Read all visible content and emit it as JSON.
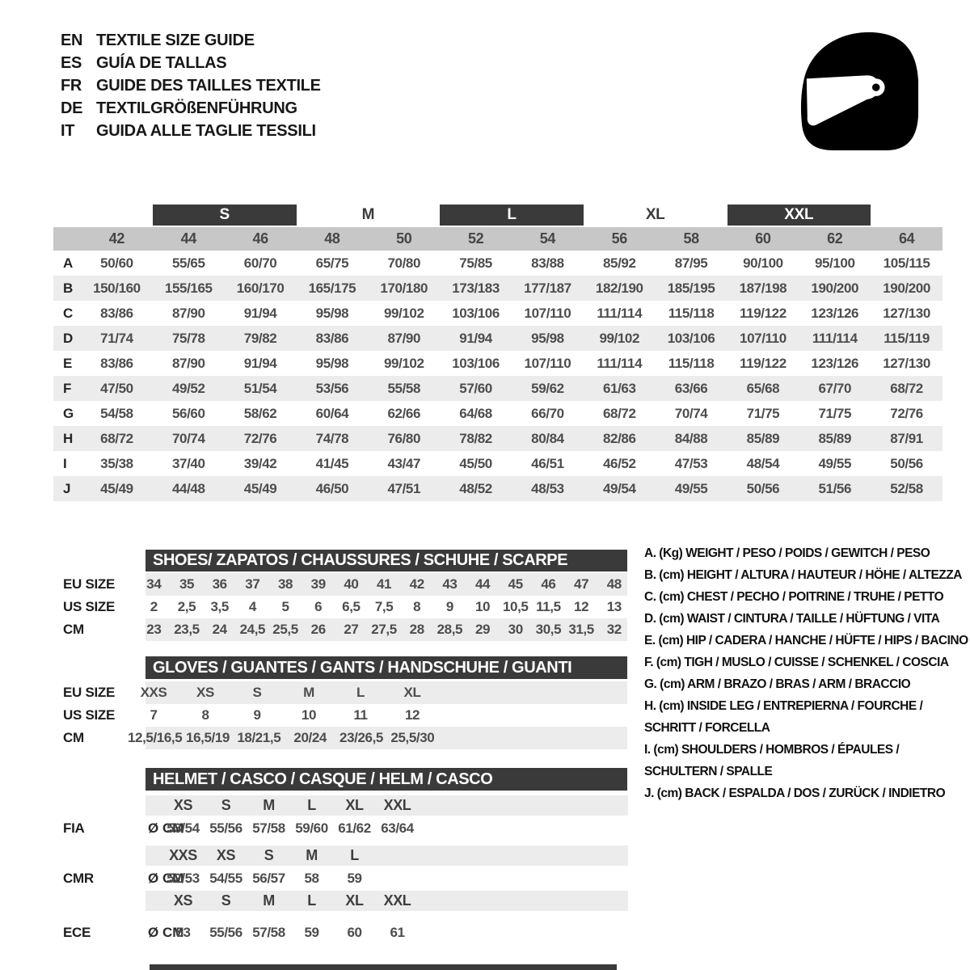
{
  "languages": [
    {
      "code": "EN",
      "label": "TEXTILE SIZE GUIDE"
    },
    {
      "code": "ES",
      "label": "GUÍA DE TALLAS"
    },
    {
      "code": "FR",
      "label": "GUIDE DES TAILLES TEXTILE"
    },
    {
      "code": "DE",
      "label": "TEXTILGRÖßENFÜHRUNG"
    },
    {
      "code": "IT",
      "label": "GUIDA ALLE TAGLIE TESSILI"
    }
  ],
  "main_table": {
    "size_groups": [
      {
        "label": "S",
        "filled": true
      },
      {
        "label": "M",
        "filled": false
      },
      {
        "label": "L",
        "filled": true
      },
      {
        "label": "XL",
        "filled": false
      },
      {
        "label": "XXL",
        "filled": true
      }
    ],
    "columns": [
      "42",
      "44",
      "46",
      "48",
      "50",
      "52",
      "54",
      "56",
      "58",
      "60",
      "62",
      "64"
    ],
    "rows": [
      {
        "label": "A",
        "values": [
          "50/60",
          "55/65",
          "60/70",
          "65/75",
          "70/80",
          "75/85",
          "83/88",
          "85/92",
          "87/95",
          "90/100",
          "95/100",
          "105/115"
        ]
      },
      {
        "label": "B",
        "values": [
          "150/160",
          "155/165",
          "160/170",
          "165/175",
          "170/180",
          "173/183",
          "177/187",
          "182/190",
          "185/195",
          "187/198",
          "190/200",
          "190/200"
        ]
      },
      {
        "label": "C",
        "values": [
          "83/86",
          "87/90",
          "91/94",
          "95/98",
          "99/102",
          "103/106",
          "107/110",
          "111/114",
          "115/118",
          "119/122",
          "123/126",
          "127/130"
        ]
      },
      {
        "label": "D",
        "values": [
          "71/74",
          "75/78",
          "79/82",
          "83/86",
          "87/90",
          "91/94",
          "95/98",
          "99/102",
          "103/106",
          "107/110",
          "111/114",
          "115/119"
        ]
      },
      {
        "label": "E",
        "values": [
          "83/86",
          "87/90",
          "91/94",
          "95/98",
          "99/102",
          "103/106",
          "107/110",
          "111/114",
          "115/118",
          "119/122",
          "123/126",
          "127/130"
        ]
      },
      {
        "label": "F",
        "values": [
          "47/50",
          "49/52",
          "51/54",
          "53/56",
          "55/58",
          "57/60",
          "59/62",
          "61/63",
          "63/66",
          "65/68",
          "67/70",
          "68/72"
        ]
      },
      {
        "label": "G",
        "values": [
          "54/58",
          "56/60",
          "58/62",
          "60/64",
          "62/66",
          "64/68",
          "66/70",
          "68/72",
          "70/74",
          "71/75",
          "71/75",
          "72/76"
        ]
      },
      {
        "label": "H",
        "values": [
          "68/72",
          "70/74",
          "72/76",
          "74/78",
          "76/80",
          "78/82",
          "80/84",
          "82/86",
          "84/88",
          "85/89",
          "85/89",
          "87/91"
        ]
      },
      {
        "label": "I",
        "values": [
          "35/38",
          "37/40",
          "39/42",
          "41/45",
          "43/47",
          "45/50",
          "46/51",
          "46/52",
          "47/53",
          "48/54",
          "49/55",
          "50/56"
        ]
      },
      {
        "label": "J",
        "values": [
          "45/49",
          "44/48",
          "45/49",
          "46/50",
          "47/51",
          "48/52",
          "48/53",
          "49/54",
          "49/55",
          "50/56",
          "51/56",
          "52/58"
        ]
      }
    ]
  },
  "shoes": {
    "title": "SHOES/ ZAPATOS / CHAUSSURES / SCHUHE / SCARPE",
    "rows": [
      {
        "label": "EU SIZE",
        "shaded": true,
        "values": [
          "34",
          "35",
          "36",
          "37",
          "38",
          "39",
          "40",
          "41",
          "42",
          "43",
          "44",
          "45",
          "46",
          "47",
          "48"
        ]
      },
      {
        "label": "US SIZE",
        "shaded": false,
        "values": [
          "2",
          "2,5",
          "3,5",
          "4",
          "5",
          "6",
          "6,5",
          "7,5",
          "8",
          "9",
          "10",
          "10,5",
          "11,5",
          "12",
          "13"
        ]
      },
      {
        "label": "CM",
        "shaded": true,
        "values": [
          "23",
          "23,5",
          "24",
          "24,5",
          "25,5",
          "26",
          "27",
          "27,5",
          "28",
          "28,5",
          "29",
          "30",
          "30,5",
          "31,5",
          "32"
        ]
      }
    ]
  },
  "gloves": {
    "title": "GLOVES / GUANTES / GANTS / HANDSCHUHE / GUANTI",
    "rows": [
      {
        "label": "EU SIZE",
        "shaded": true,
        "values": [
          "XXS",
          "XS",
          "S",
          "M",
          "L",
          "XL"
        ]
      },
      {
        "label": "US SIZE",
        "shaded": false,
        "values": [
          "7",
          "8",
          "9",
          "10",
          "11",
          "12"
        ]
      },
      {
        "label": "CM",
        "shaded": true,
        "values": [
          "12,5/16,5",
          "16,5/19",
          "18/21,5",
          "20/24",
          "23/26,5",
          "25,5/30"
        ]
      }
    ]
  },
  "helmet": {
    "title": "HELMET / CASCO / CASQUE / HELM / CASCO",
    "standards": [
      {
        "label": "FIA",
        "unit": "Ø CM",
        "sizes": [
          "XS",
          "S",
          "M",
          "L",
          "XL",
          "XXL"
        ],
        "values": [
          "53/54",
          "55/56",
          "57/58",
          "59/60",
          "61/62",
          "63/64"
        ]
      },
      {
        "label": "CMR",
        "unit": "Ø CM",
        "sizes": [
          "XXS",
          "XS",
          "S",
          "M",
          "L"
        ],
        "values": [
          "52/53",
          "54/55",
          "56/57",
          "58",
          "59"
        ]
      },
      {
        "label": "ECE",
        "unit": "Ø CM",
        "sizes": [
          "XS",
          "S",
          "M",
          "L",
          "XL",
          "XXL"
        ],
        "values": [
          "53",
          "55/56",
          "57/58",
          "59",
          "60",
          "61"
        ]
      }
    ]
  },
  "legend": {
    "entries": [
      [
        "A. (Kg) WEIGHT / PESO / POIDS / GEWITCH / PESO"
      ],
      [
        "B. (cm) HEIGHT / ALTURA / HAUTEUR / HÖHE / ALTEZZA"
      ],
      [
        "C. (cm) CHEST / PECHO / POITRINE / TRUHE / PETTO"
      ],
      [
        "D. (cm) WAIST / CINTURA / TAILLE / HÜFTUNG / VITA"
      ],
      [
        "E. (cm) HIP / CADERA / HANCHE / HÜFTE / HIPS /  BACINO"
      ],
      [
        "F. (cm) TIGH / MUSLO / CUISSE / SCHENKEL / COSCIA"
      ],
      [
        "G. (cm) ARM  / BRAZO / BRAS / ARM / BRACCIO"
      ],
      [
        "H. (cm) INSIDE LEG / ENTREPIERNA / FOURCHE /",
        "SCHRITT / FORCELLA"
      ],
      [
        "I.  (cm) SHOULDERS / HOMBROS / ÉPAULES /",
        "SCHULTERN / SPALLE"
      ],
      [
        "J. (cm) BACK / ESPALDA / DOS / ZURÜCK / INDIETRO"
      ]
    ]
  },
  "colors": {
    "dark_bar": "#3a3a3a",
    "column_band": "#c7c7c7",
    "row_stripe": "#ececec",
    "value_text": "#4d4d4d",
    "label_text": "#1d1d1d"
  }
}
